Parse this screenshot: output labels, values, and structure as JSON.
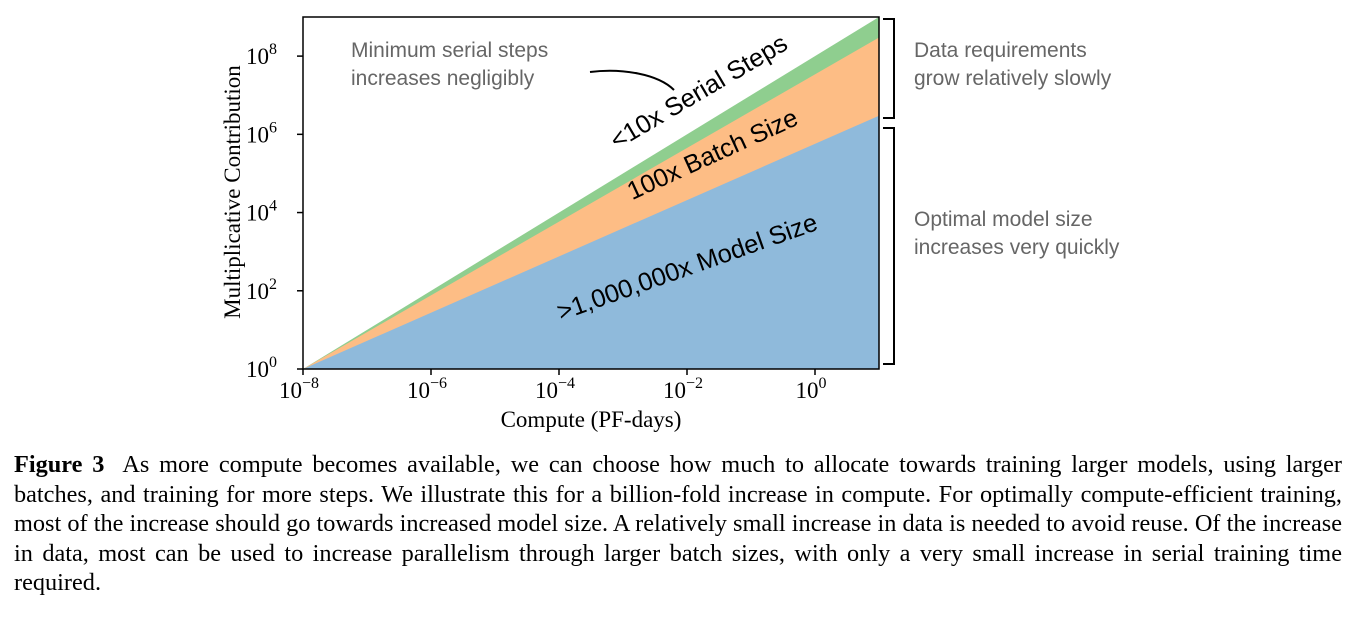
{
  "chart_data": {
    "type": "area",
    "xlabel": "Compute (PF-days)",
    "ylabel": "Multiplicative Contribution",
    "x_scale": "log",
    "y_scale": "log",
    "xlim": [
      1e-08,
      10
    ],
    "ylim": [
      1,
      1000000000.0
    ],
    "x_ticks": [
      {
        "base": "10",
        "exp": "−8",
        "value": 1e-08
      },
      {
        "base": "10",
        "exp": "−6",
        "value": 1e-06
      },
      {
        "base": "10",
        "exp": "−4",
        "value": 0.0001
      },
      {
        "base": "10",
        "exp": "−2",
        "value": 0.01
      },
      {
        "base": "10",
        "exp": "0",
        "value": 1
      }
    ],
    "y_ticks": [
      {
        "base": "10",
        "exp": "0",
        "value": 1
      },
      {
        "base": "10",
        "exp": "2",
        "value": 100
      },
      {
        "base": "10",
        "exp": "4",
        "value": 10000
      },
      {
        "base": "10",
        "exp": "6",
        "value": 1000000
      },
      {
        "base": "10",
        "exp": "8",
        "value": 100000000
      }
    ],
    "x": [
      1e-08,
      10
    ],
    "series": [
      {
        "name": ">1,000,000x Model Size",
        "color": "#8fbadb",
        "cumulative_top": [
          1,
          3000000
        ]
      },
      {
        "name": "100x Batch Size",
        "color": "#fdbd85",
        "cumulative_top": [
          1,
          300000000
        ]
      },
      {
        "name": "<10x Serial Steps",
        "color": "#8fce8f",
        "cumulative_top": [
          1,
          1000000000
        ]
      }
    ],
    "annotations": {
      "serial_note_line1": "Minimum serial steps",
      "serial_note_line2": "increases negligibly",
      "data_note_line1": "Data requirements",
      "data_note_line2": "grow relatively slowly",
      "model_note_line1": "Optimal model size",
      "model_note_line2": "increases very quickly"
    },
    "grid": false,
    "legend": "none"
  },
  "caption": {
    "label": "Figure 3",
    "text": "As more compute becomes available, we can choose how much to allocate towards training larger models, using larger batches, and training for more steps. We illustrate this for a billion-fold increase in compute. For optimally compute-efficient training, most of the increase should go towards increased model size. A relatively small increase in data is needed to avoid reuse. Of the increase in data, most can be used to increase parallelism through larger batch sizes, with only a very small increase in serial training time required."
  }
}
